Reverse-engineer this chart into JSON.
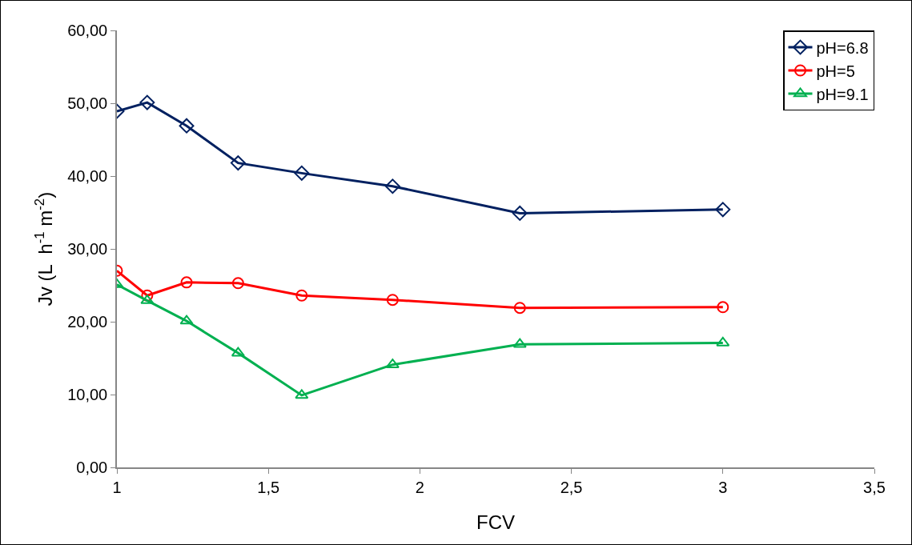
{
  "chart_data": {
    "type": "line",
    "xlabel": "FCV",
    "ylabel": "Jv (L  h$^{-1}$ m$^{-2}$)",
    "x": [
      1,
      1.1,
      1.23,
      1.4,
      1.61,
      1.91,
      2.33,
      3
    ],
    "series": [
      {
        "name": "pH=6.8",
        "color": "#002060",
        "marker": "diamond",
        "values": [
          48.9,
          50.1,
          46.9,
          41.8,
          40.4,
          38.6,
          34.9,
          35.4
        ]
      },
      {
        "name": "pH=5",
        "color": "#ff0000",
        "marker": "circle",
        "values": [
          27.0,
          23.6,
          25.4,
          25.3,
          23.6,
          23.0,
          21.9,
          22.0
        ]
      },
      {
        "name": "pH=9.1",
        "color": "#00b050",
        "marker": "triangle",
        "values": [
          25.1,
          22.9,
          20.1,
          15.7,
          9.9,
          14.1,
          16.9,
          17.1
        ]
      }
    ],
    "xlim": [
      1,
      3.5
    ],
    "xticks": [
      1,
      {
        "value": 1.5,
        "label": "1,5"
      },
      2,
      {
        "value": 2.5,
        "label": "2,5"
      },
      3,
      {
        "value": 3.5,
        "label": "3,5"
      }
    ],
    "ylim": [
      0,
      60
    ],
    "yticks": [
      {
        "value": 0,
        "label": "0,00"
      },
      {
        "value": 10,
        "label": "10,00"
      },
      {
        "value": 20,
        "label": "20,00"
      },
      {
        "value": 30,
        "label": "30,00"
      },
      {
        "value": 40,
        "label": "40,00"
      },
      {
        "value": 50,
        "label": "50,00"
      },
      {
        "value": 60,
        "label": "60,00"
      }
    ],
    "grid": false,
    "legend": "top right",
    "line_style": "solid"
  }
}
